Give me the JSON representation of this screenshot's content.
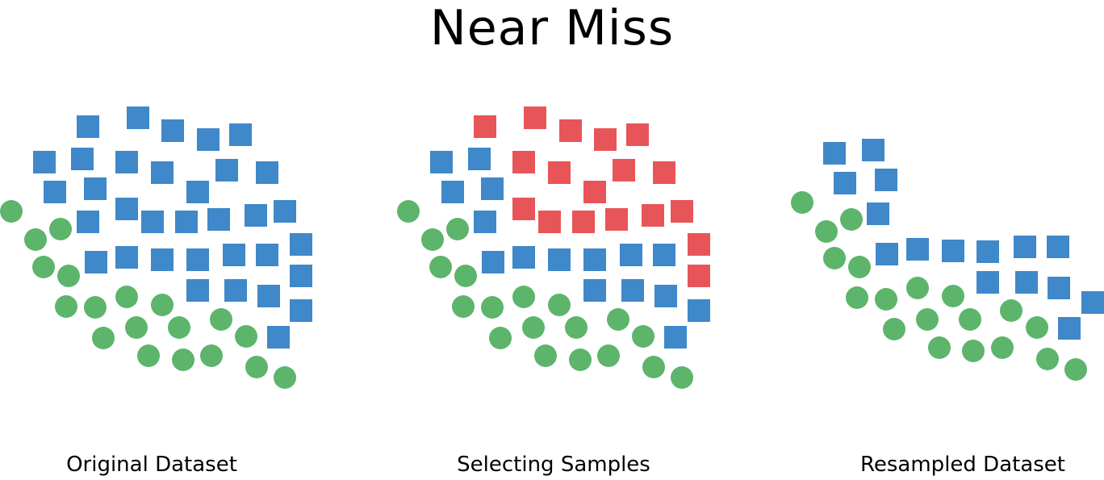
{
  "title": "Near Miss",
  "colors": {
    "majority": "#3f88c9",
    "minority": "#5cb56b",
    "selected": "#e85558"
  },
  "panels": [
    {
      "caption": "Original Dataset"
    },
    {
      "caption": "Selecting Samples"
    },
    {
      "caption": "Resampled Dataset"
    }
  ]
}
